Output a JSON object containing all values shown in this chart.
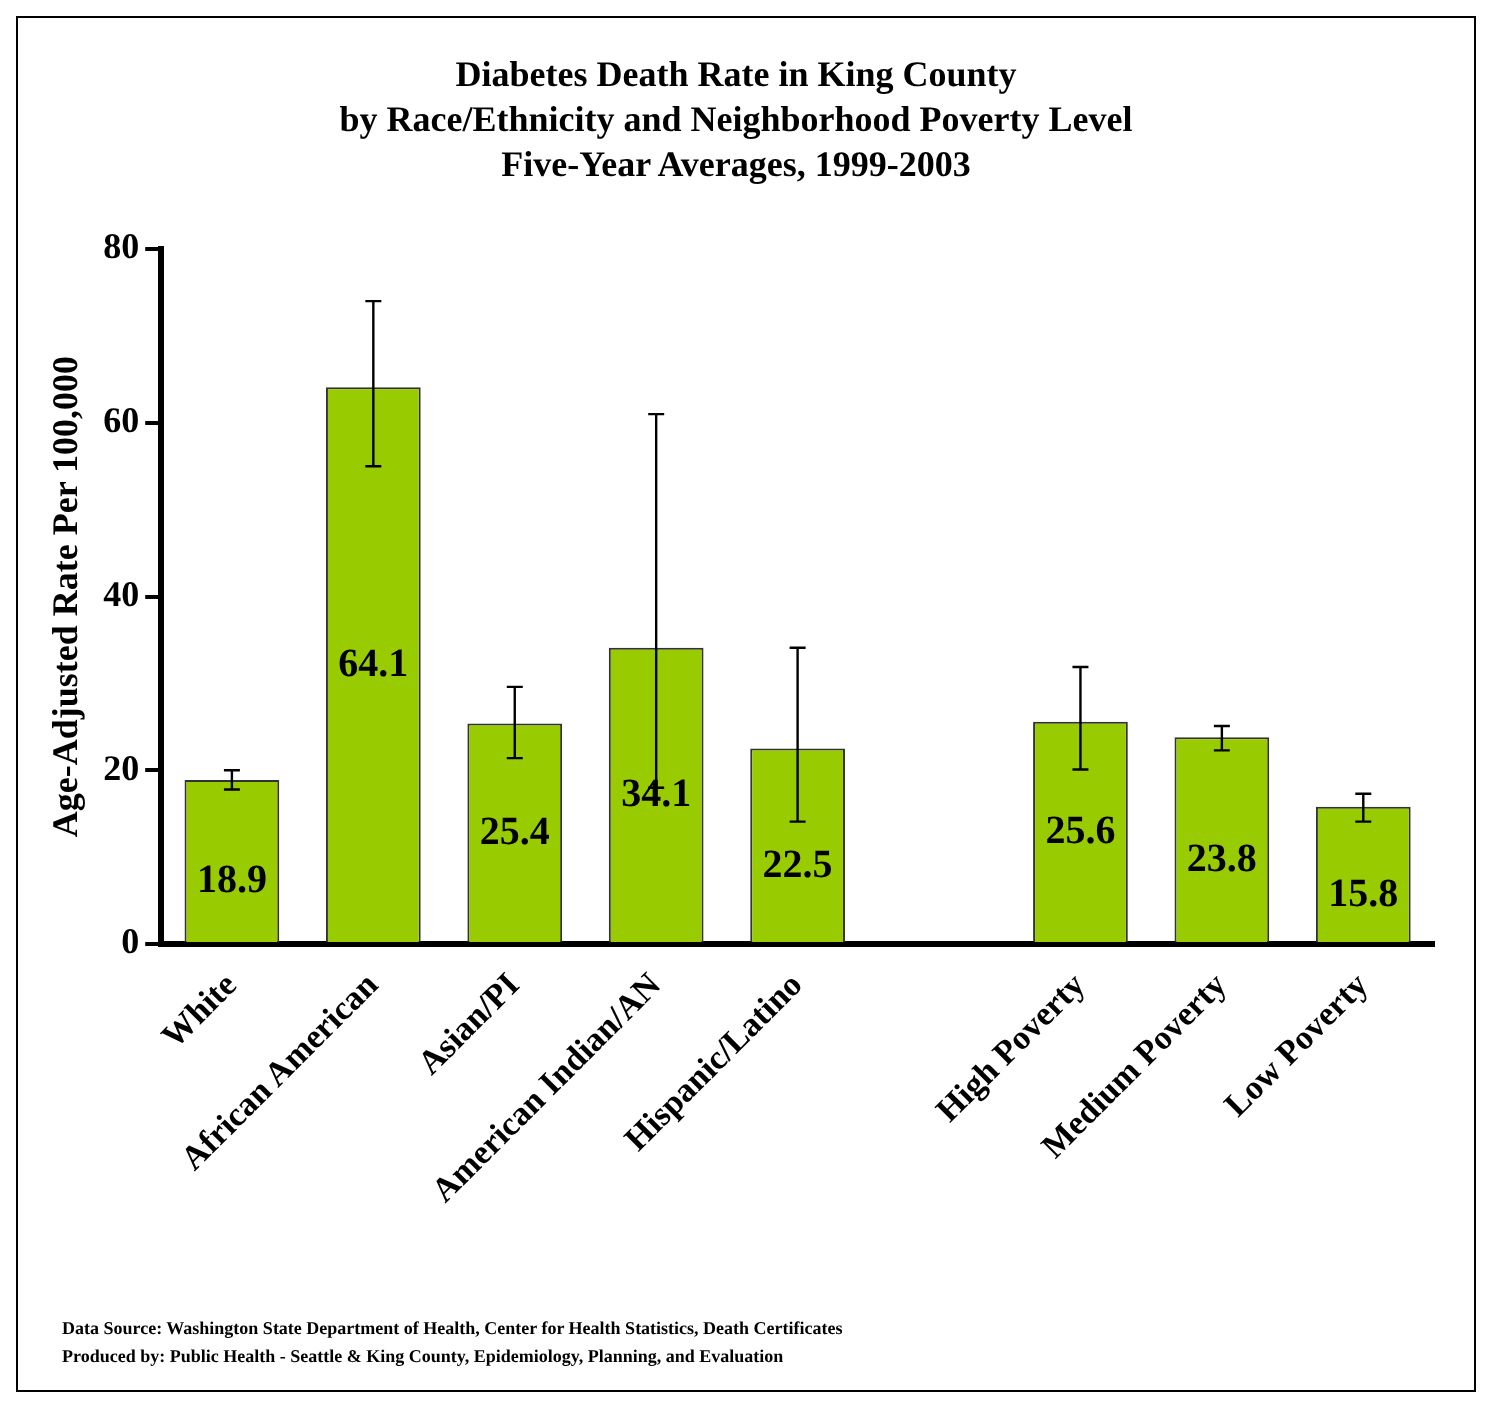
{
  "chart_data": {
    "type": "bar",
    "title": "Diabetes Death Rate in King County\nby Race/Ethnicity and Neighborhood Poverty Level\nFive-Year Averages, 1999-2003",
    "ylabel": "Age-Adjusted Rate Per 100,000",
    "categories": [
      "White",
      "African American",
      "Asian/PI",
      "American Indian/AN",
      "Hispanic/Latino",
      null,
      "High Poverty",
      "Medium Poverty",
      "Low Poverty"
    ],
    "values": [
      18.9,
      64.1,
      25.4,
      34.1,
      22.5,
      null,
      25.6,
      23.8,
      15.8
    ],
    "errors": [
      [
        17.8,
        20.0
      ],
      [
        55.0,
        74.0
      ],
      [
        21.4,
        29.6
      ],
      [
        18.0,
        61.0
      ],
      [
        14.1,
        34.1
      ],
      null,
      [
        20.1,
        31.9
      ],
      [
        22.3,
        25.1
      ],
      [
        14.1,
        17.3
      ]
    ],
    "color": "#99cc00",
    "ylim": [
      0,
      80
    ],
    "yticks": [
      0,
      20,
      40,
      60,
      80
    ],
    "data_labels": true,
    "annotations": [
      "Data Source: Washington State Department of Health, Center for Health Statistics, Death Certificates",
      "Produced by: Public Health - Seattle & King County, Epidemiology, Planning, and Evaluation"
    ]
  }
}
